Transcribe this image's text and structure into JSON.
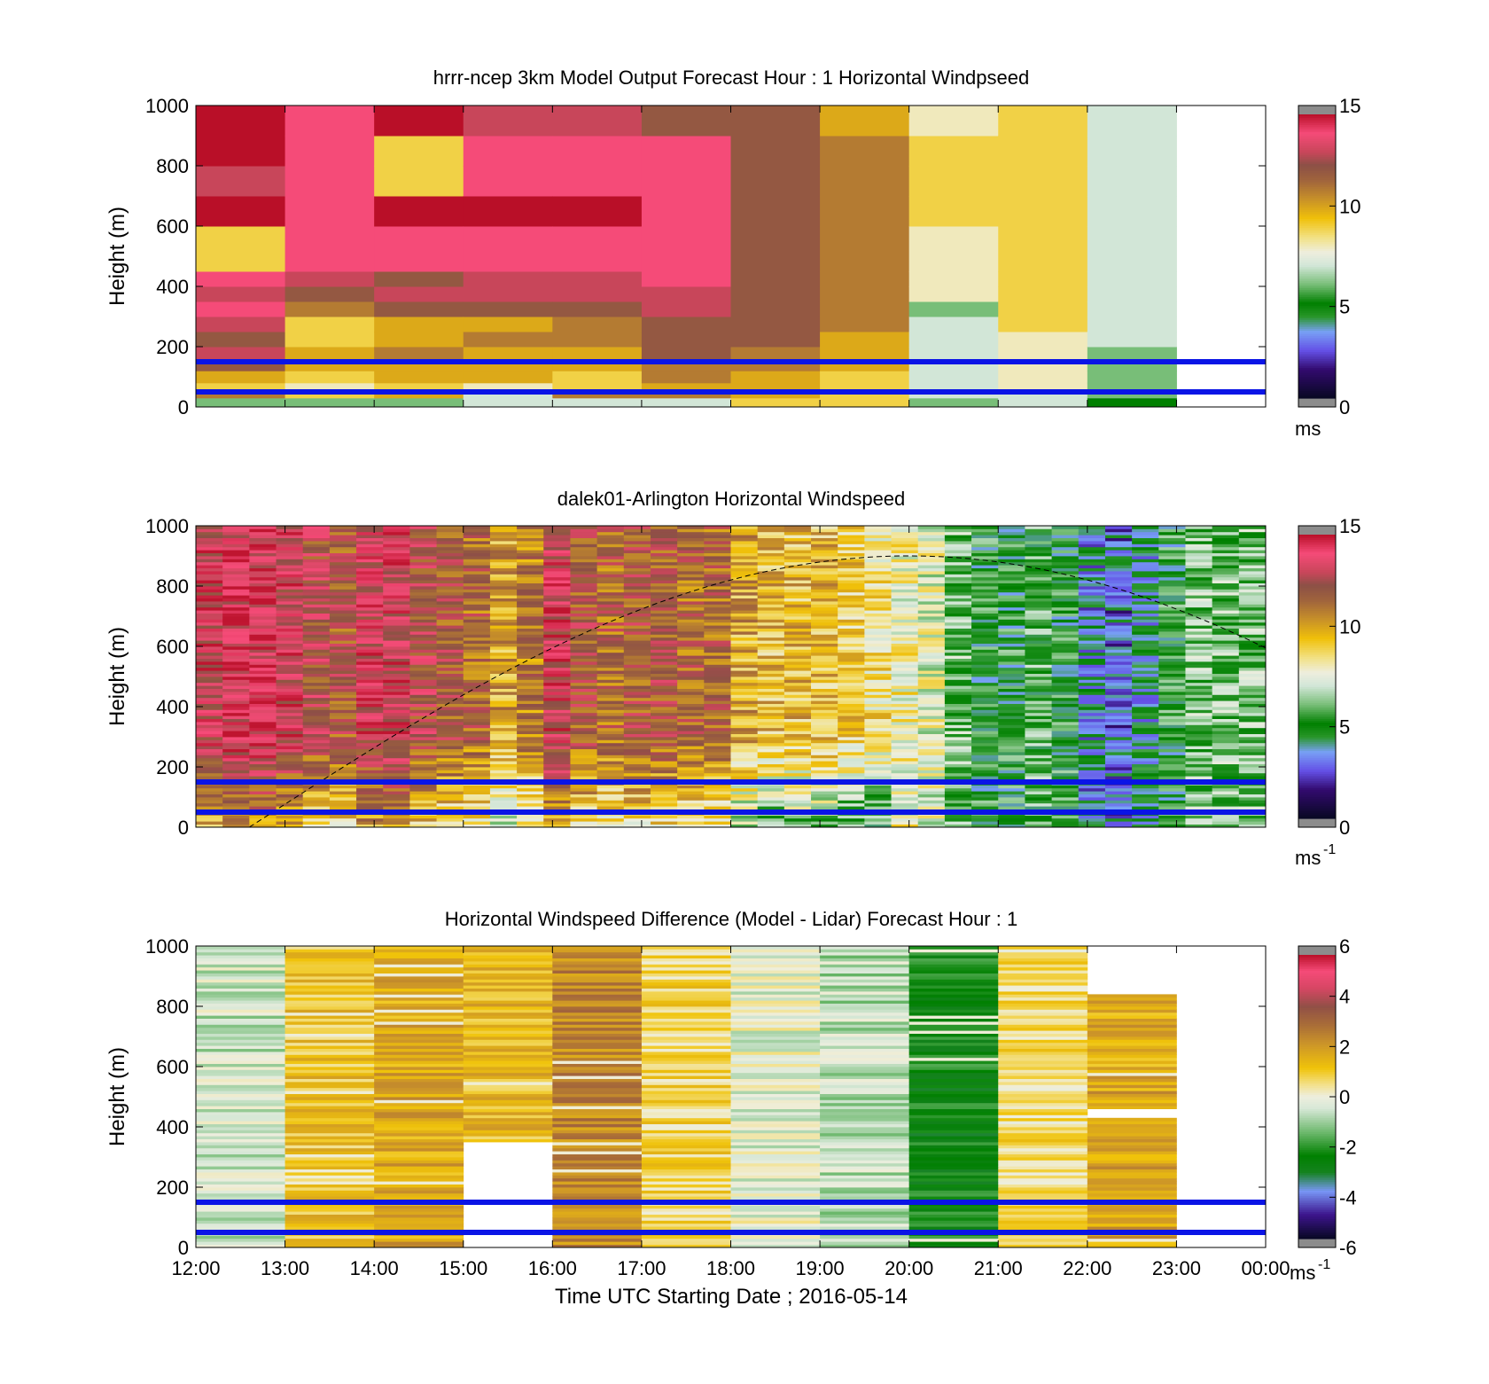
{
  "chart_data": [
    {
      "type": "heatmap",
      "title": "hrrr-ncep 3km Model Output   Forecast Hour : 1 Horizontal Windpseed",
      "xlabel": "",
      "ylabel": "Height (m)",
      "ylim": [
        0,
        1000
      ],
      "yticks": [
        "0",
        "200",
        "400",
        "600",
        "800",
        "1000"
      ],
      "colorbar": {
        "ticks": [
          "0",
          "5",
          "10",
          "15"
        ],
        "range": [
          0,
          15
        ],
        "unit": "ms",
        "unit_sup": ""
      },
      "reference_lines_m": [
        50,
        150
      ],
      "x_hours": [
        12,
        13,
        14,
        15,
        16,
        17,
        18,
        19,
        20,
        21,
        22
      ],
      "height_bins_m": [
        0,
        30,
        50,
        80,
        120,
        150,
        200,
        250,
        300,
        350,
        400,
        450,
        600,
        700,
        800,
        900,
        1000
      ],
      "values_ms": [
        [
          6,
          11,
          9,
          10,
          12,
          13,
          12,
          13,
          14,
          13,
          14,
          9,
          15,
          13,
          15,
          15
        ],
        [
          6,
          9,
          8,
          9,
          10,
          10,
          9,
          9,
          11,
          12,
          13,
          14,
          14,
          14,
          14,
          14
        ],
        [
          6,
          10,
          9,
          10,
          10,
          11,
          10,
          10,
          12,
          13,
          12,
          14,
          15,
          9,
          9,
          15
        ],
        [
          7,
          7,
          8,
          10,
          10,
          10,
          11,
          10,
          12,
          13,
          13,
          14,
          15,
          14,
          14,
          13
        ],
        [
          7,
          11,
          9,
          9,
          10,
          10,
          11,
          11,
          12,
          13,
          13,
          14,
          15,
          14,
          14,
          13
        ],
        [
          7,
          11,
          10,
          11,
          11,
          12,
          12,
          12,
          13,
          13,
          14,
          14,
          14,
          14,
          14,
          12
        ],
        [
          9,
          10,
          10,
          10,
          11,
          11,
          12,
          12,
          12,
          12,
          12,
          12,
          12,
          12,
          12,
          12
        ],
        [
          9,
          9,
          9,
          9,
          10,
          10,
          10,
          11,
          11,
          11,
          11,
          11,
          11,
          11,
          11,
          10
        ],
        [
          6,
          7,
          7,
          7,
          7,
          7,
          7,
          7,
          6,
          8,
          8,
          8,
          9,
          9,
          9,
          8
        ],
        [
          7,
          7,
          8,
          8,
          8,
          8,
          8,
          9,
          9,
          9,
          9,
          9,
          9,
          9,
          9,
          9
        ],
        [
          5,
          6,
          6,
          6,
          6,
          6,
          7,
          7,
          7,
          7,
          7,
          7,
          7,
          7,
          7,
          7
        ]
      ]
    },
    {
      "type": "heatmap",
      "title": "dalek01-Arlington  Horizontal Windspeed",
      "xlabel": "",
      "ylabel": "Height (m)",
      "ylim": [
        0,
        1000
      ],
      "yticks": [
        "0",
        "200",
        "400",
        "600",
        "800",
        "1000"
      ],
      "colorbar": {
        "ticks": [
          "0",
          "5",
          "10",
          "15"
        ],
        "range": [
          0,
          15
        ],
        "unit": "ms",
        "unit_sup": "-1"
      },
      "reference_lines_m": [
        50,
        150
      ],
      "x_hours_start": 12,
      "x_hours_end": 24,
      "columns_per_hour": 4,
      "column_profile_ms": [
        13.5,
        14,
        14,
        13.5,
        12.5,
        12,
        13.5,
        13.5,
        12.5,
        12,
        11.5,
        10,
        11,
        13.5,
        12,
        11.5,
        12,
        12,
        11.5,
        11.5,
        10,
        9.5,
        9.5,
        9.5,
        9,
        8.5,
        8,
        7.5,
        6,
        5,
        5,
        5.5,
        5,
        3.5,
        3,
        4,
        5,
        6,
        6,
        6
      ],
      "noise_ms": 1.6,
      "dashed_curve_peak": {
        "x_hour": 20,
        "height_m": 900
      },
      "dashed_curve_span_hours": [
        12.6,
        24
      ]
    },
    {
      "type": "heatmap",
      "title": "Horizontal Windspeed Difference (Model - Lidar) Forecast Hour : 1",
      "xlabel": "Time UTC  Starting Date ; 2016-05-14",
      "ylabel": "Height (m)",
      "ylim": [
        0,
        1000
      ],
      "yticks": [
        "0",
        "200",
        "400",
        "600",
        "800",
        "1000"
      ],
      "xticks": [
        "12:00",
        "13:00",
        "14:00",
        "15:00",
        "16:00",
        "17:00",
        "18:00",
        "19:00",
        "20:00",
        "21:00",
        "22:00",
        "23:00",
        "00:00"
      ],
      "colorbar": {
        "ticks": [
          "-6",
          "-4",
          "-2",
          "0",
          "2",
          "4",
          "6"
        ],
        "range": [
          -6,
          6
        ],
        "unit": "ms",
        "unit_sup": "-1"
      },
      "reference_lines_m": [
        50,
        150
      ],
      "x_hours": [
        12,
        13,
        14,
        15,
        16,
        17,
        18,
        19,
        20,
        21,
        22
      ],
      "column_base_diff_ms": [
        -0.6,
        1.2,
        1.8,
        1.4,
        2.5,
        0.8,
        -0.2,
        -0.8,
        -2.5,
        0.6,
        1.8
      ],
      "column_top_m": [
        1000,
        1000,
        1000,
        1000,
        1000,
        1000,
        1000,
        1000,
        1000,
        1000,
        840
      ],
      "gaps_m": [
        {
          "hour": 15,
          "from": 0,
          "to": 345
        },
        {
          "hour": 22,
          "from": 435,
          "to": 455
        }
      ],
      "noise_ms": 0.8
    }
  ]
}
